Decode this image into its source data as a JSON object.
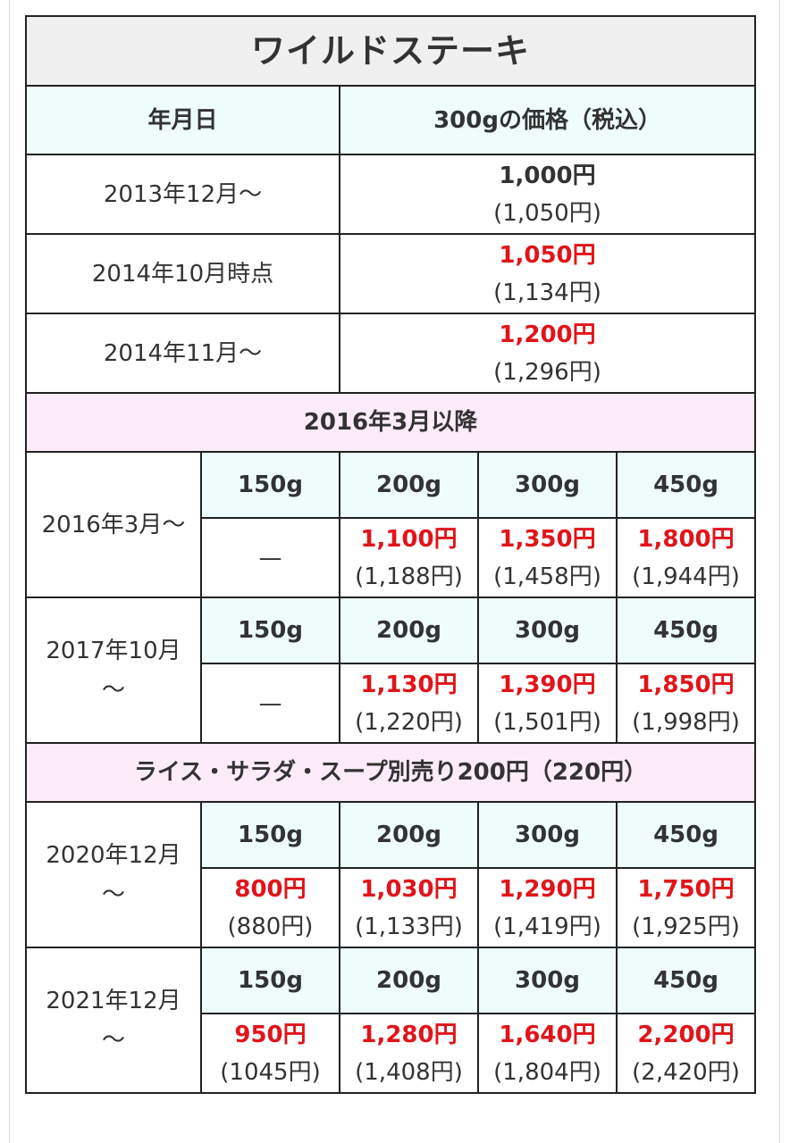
{
  "title": "ワイルドステーキ",
  "header": {
    "date": "年月日",
    "price": "300gの価格（税込）"
  },
  "early_rows": [
    {
      "date": "2013年12月～",
      "price": "1,000円",
      "price_tax": "(1,050円)",
      "highlight": false
    },
    {
      "date": "2014年10月時点",
      "price": "1,050円",
      "price_tax": "(1,134円)",
      "highlight": true
    },
    {
      "date": "2014年11月～",
      "price": "1,200円",
      "price_tax": "(1,296円)",
      "highlight": true
    }
  ],
  "section1_label": "2016年3月以降",
  "section2_label": "ライス・サラダ・スープ別売り200円（220円）",
  "sizes": [
    "150g",
    "200g",
    "300g",
    "450g"
  ],
  "dash": "—",
  "periods": [
    {
      "date": "2016年3月～",
      "prices": [
        {
          "price": "",
          "price_tax": ""
        },
        {
          "price": "1,100円",
          "price_tax": "(1,188円)"
        },
        {
          "price": "1,350円",
          "price_tax": "(1,458円)"
        },
        {
          "price": "1,800円",
          "price_tax": "(1,944円)"
        }
      ]
    },
    {
      "date": "2017年10月～",
      "prices": [
        {
          "price": "",
          "price_tax": ""
        },
        {
          "price": "1,130円",
          "price_tax": "(1,220円)"
        },
        {
          "price": "1,390円",
          "price_tax": "(1,501円)"
        },
        {
          "price": "1,850円",
          "price_tax": "(1,998円)"
        }
      ]
    },
    {
      "date": "2020年12月～",
      "prices": [
        {
          "price": "800円",
          "price_tax": "(880円)"
        },
        {
          "price": "1,030円",
          "price_tax": "(1,133円)"
        },
        {
          "price": "1,290円",
          "price_tax": "(1,419円)"
        },
        {
          "price": "1,750円",
          "price_tax": "(1,925円)"
        }
      ]
    },
    {
      "date": "2021年12月～",
      "prices": [
        {
          "price": "950円",
          "price_tax": "(1045円)"
        },
        {
          "price": "1,280円",
          "price_tax": "(1,408円)"
        },
        {
          "price": "1,640円",
          "price_tax": "(1,804円)"
        },
        {
          "price": "2,200円",
          "price_tax": "(2,420円)"
        }
      ]
    }
  ],
  "colors": {
    "highlight_price": "#e0141a",
    "header_bg": "#eefcfc",
    "section_bg": "#fcecf9",
    "title_bg": "#f0f0f0",
    "border": "#222222"
  }
}
